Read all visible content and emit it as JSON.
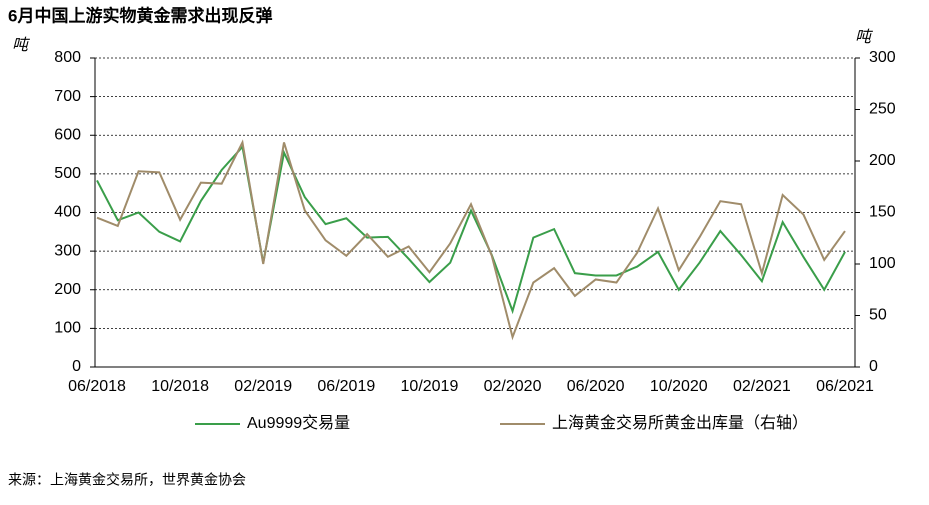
{
  "chart_data": {
    "type": "line",
    "title": "6月中国上游实物黄金需求出现反弹",
    "y_label": "吨",
    "y2_label": "吨",
    "source": "来源：上海黄金交易所，世界黄金协会",
    "categories": [
      "06/2018",
      null,
      null,
      null,
      "10/2018",
      null,
      null,
      null,
      "02/2019",
      null,
      null,
      null,
      "06/2019",
      null,
      null,
      null,
      "10/2019",
      null,
      null,
      null,
      "02/2020",
      null,
      null,
      null,
      "06/2020",
      null,
      null,
      null,
      "10/2020",
      null,
      null,
      null,
      "02/2021",
      null,
      null,
      null,
      "06/2021"
    ],
    "series": [
      {
        "name": "Au9999交易量",
        "color": "#3a9e4a",
        "values": [
          483,
          380,
          400,
          350,
          325,
          430,
          510,
          570,
          270,
          555,
          440,
          370,
          385,
          335,
          337,
          280,
          220,
          270,
          405,
          290,
          145,
          335,
          357,
          243,
          237,
          237,
          260,
          298,
          200,
          270,
          352,
          290,
          222,
          375,
          285,
          200,
          298
        ]
      },
      {
        "name": "上海黄金交易所黄金出库量（右轴）",
        "color": "#a08c6a",
        "axis": "y2",
        "values": [
          145,
          137,
          190,
          189,
          143,
          179,
          178,
          218,
          100,
          218,
          152,
          123,
          108,
          129,
          107,
          117,
          92,
          120,
          158,
          108,
          29,
          82,
          96,
          69,
          85,
          82,
          111,
          154,
          94,
          126,
          161,
          158,
          91,
          167,
          148,
          104,
          132
        ]
      }
    ],
    "ylim": [
      0,
      800
    ],
    "yticks": [
      0,
      100,
      200,
      300,
      400,
      500,
      600,
      700,
      800
    ],
    "y2lim": [
      0,
      300
    ],
    "y2ticks": [
      0,
      50,
      100,
      150,
      200,
      250,
      300
    ],
    "grid": true,
    "legend": "bottom"
  }
}
